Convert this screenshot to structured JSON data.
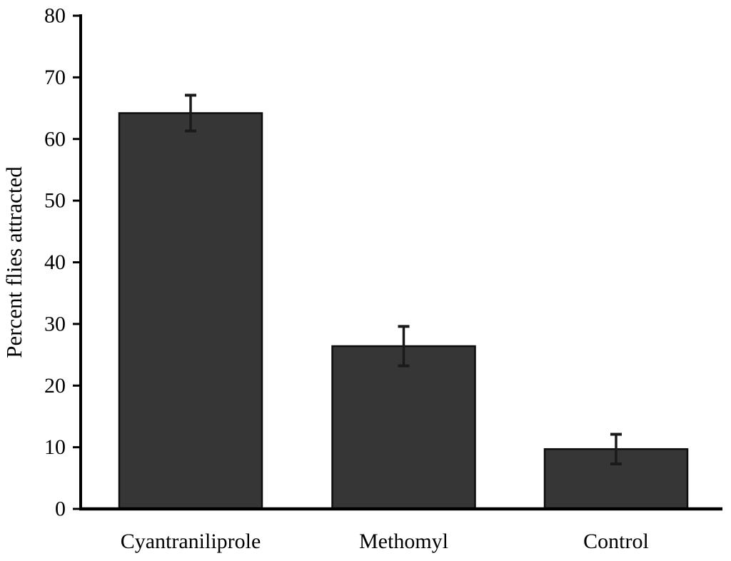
{
  "figure": {
    "background": "#ffffff"
  },
  "chart_data": {
    "type": "bar",
    "categories": [
      "Cyantraniliprole",
      "Methomyl",
      "Control"
    ],
    "values": [
      64.2,
      26.4,
      9.7
    ],
    "errors": [
      2.9,
      3.2,
      2.4
    ],
    "title": "",
    "xlabel": "",
    "ylabel": "Percent flies attracted",
    "ylim": [
      0,
      80
    ],
    "ytick_step": 10,
    "ytick_labels": [
      "0",
      "10",
      "20",
      "30",
      "40",
      "50",
      "60",
      "70",
      "80"
    ],
    "grid": false,
    "legend_position": "none",
    "bar_color": "#363636",
    "bar_border_color": "#0d0d0d",
    "error_bar_color": "#1a1a1a",
    "axis_color": "#000000",
    "text_color": "#000000"
  }
}
